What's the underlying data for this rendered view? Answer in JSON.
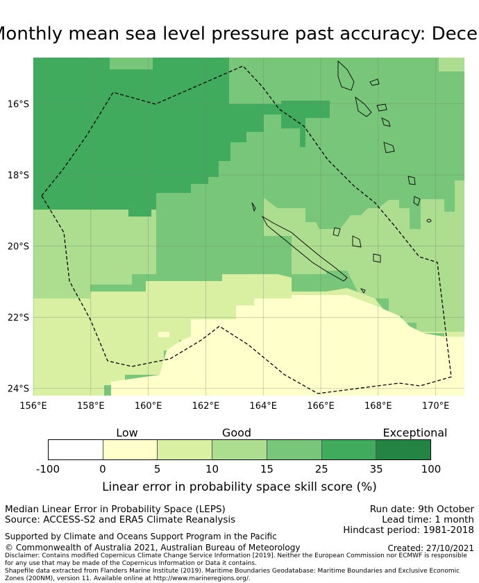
{
  "title": "Monthly mean sea level pressure past accuracy: December",
  "map": {
    "x_ticks": [
      "156°E",
      "158°E",
      "160°E",
      "162°E",
      "164°E",
      "166°E",
      "168°E",
      "170°E"
    ],
    "y_ticks": [
      "16°S",
      "18°S",
      "20°S",
      "22°S",
      "24°S"
    ],
    "lon_range": [
      156.0,
      171.0
    ],
    "lat_range": [
      -24.2,
      -14.7
    ]
  },
  "colorbar": {
    "category_labels": [
      "Low",
      "Good",
      "Exceptional"
    ],
    "tick_labels": [
      "-100",
      "0",
      "5",
      "10",
      "15",
      "25",
      "35",
      "100"
    ],
    "colors": [
      "#ffffff",
      "#ffffcc",
      "#d9f0a3",
      "#addd8e",
      "#78c679",
      "#41ab5d",
      "#238443"
    ],
    "axis_label": "Linear error in probability space skill score (%)"
  },
  "info": {
    "metric": "Median Linear Error in Probability Space (LEPS)",
    "source": "Source: ACCESS-S2 and ERA5 Climate Reanalysis",
    "run_date": "Run date: 9th October",
    "lead_time": "Lead time: 1 month",
    "hindcast": "Hindcast period: 1981-2018",
    "support": "Supported by Climate and Oceans Support Program in the Pacific",
    "copyright": "© Commonwealth of Australia 2021, Australian Bureau of Meteorology",
    "created": "Created: 27/10/2021",
    "disclaimer": "Disclaimer: Contains modified Copernicus Climate Change Service Information [2019]. Neither the European Commission nor ECMWF is responsible for any use that may be made of the Copernicus Information or Data it contains.",
    "shapefile": "Shapefile data extracted from Flanders Marine Institute (2019). Maritime Boundaries Geodatabase: Maritime Boundaries and Exclusive Economic Zones (200NM), version 11. Available online at http://www.marineregions.org/."
  }
}
